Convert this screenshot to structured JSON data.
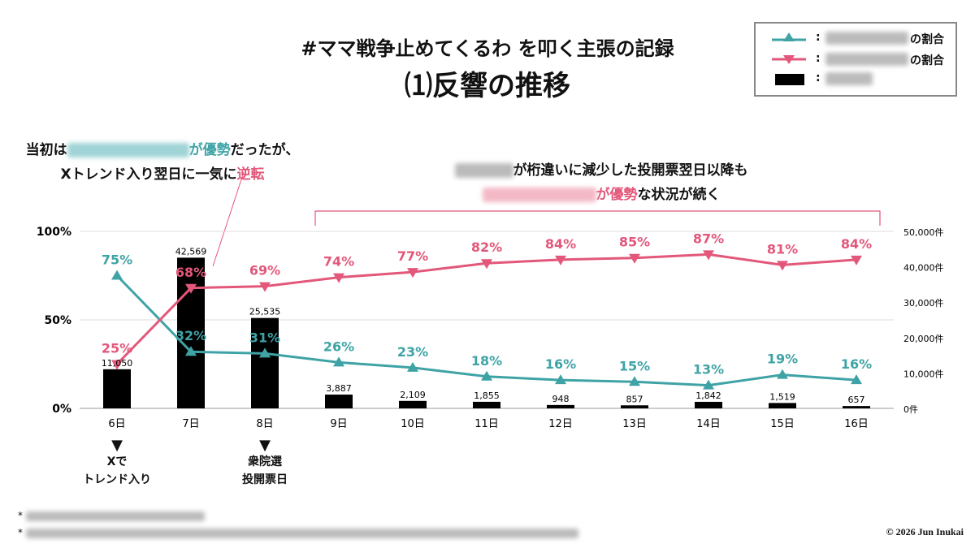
{
  "title": {
    "line1": "#ママ戦争止めてくるわ を叩く主張の記録",
    "line2": "⑴反響の推移"
  },
  "legend": {
    "items": [
      {
        "marker": "triangle-up-line",
        "color": "#3fa3a6",
        "suffix": "の割合"
      },
      {
        "marker": "triangle-down-line",
        "color": "#e2577a",
        "suffix": "の割合"
      },
      {
        "marker": "bar",
        "color": "#000000",
        "suffix": ""
      }
    ],
    "separator": ":"
  },
  "annotations": {
    "left": {
      "a1": "当初は",
      "a2": "が優勢",
      "a3": "だったが、",
      "b1": "Xトレンド入り翌日に一気に",
      "b2": "逆転"
    },
    "right": {
      "a": "が桁違いに減少した投開票翌日以降も",
      "b1": "が優勢",
      "b2": "な状況が続く"
    }
  },
  "markers": [
    {
      "category": "6日",
      "line1": "Xで",
      "line2": "トレンド入り"
    },
    {
      "category": "8日",
      "line1": "衆院選",
      "line2": "投開票日"
    }
  ],
  "footnotes": [
    "*",
    "*"
  ],
  "copyright": "© 2026 Jun Inukai",
  "chart_data": {
    "type": "bar+line",
    "categories": [
      "6日",
      "7日",
      "8日",
      "9日",
      "10日",
      "11日",
      "12日",
      "13日",
      "14日",
      "15日",
      "16日"
    ],
    "left_axis": {
      "ticks": [
        "0%",
        "50%",
        "100%"
      ],
      "range": [
        0,
        100
      ]
    },
    "right_axis": {
      "ticks": [
        "0件",
        "10,000件",
        "20,000件",
        "30,000件",
        "40,000件",
        "50,000件"
      ],
      "range": [
        0,
        50000
      ]
    },
    "bars": {
      "color": "#000000",
      "values": [
        11050,
        42569,
        25535,
        3887,
        2109,
        1855,
        948,
        857,
        1842,
        1519,
        657
      ],
      "labels": [
        "11,050",
        "42,569",
        "25,535",
        "3,887",
        "2,109",
        "1,855",
        "948",
        "857",
        "1,842",
        "1,519",
        "657"
      ]
    },
    "series": [
      {
        "color": "#3fa3a6",
        "marker": "triangle-up",
        "values": [
          75,
          32,
          31,
          26,
          23,
          18,
          16,
          15,
          13,
          19,
          16
        ]
      },
      {
        "color": "#e2577a",
        "marker": "triangle-down",
        "values": [
          25,
          68,
          69,
          74,
          77,
          82,
          84,
          85,
          87,
          81,
          84
        ]
      }
    ],
    "grid": true
  }
}
